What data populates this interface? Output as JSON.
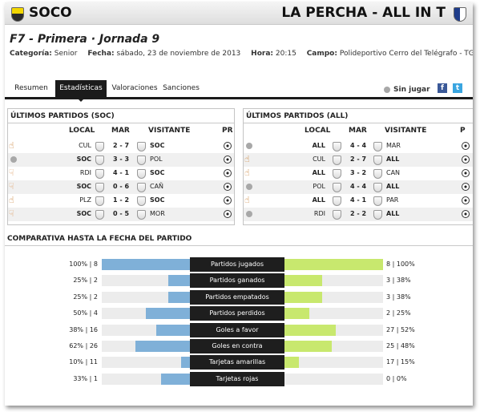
{
  "header": {
    "home_team": "SOCO",
    "away_team": "LA PERCHA - ALL IN T",
    "title": "F7 - Primera · Jornada 9",
    "categoria_label": "Categoría:",
    "categoria": "Senior",
    "fecha_label": "Fecha:",
    "fecha": "sábado, 23 de noviembre de 2013",
    "hora_label": "Hora:",
    "hora": "20:15",
    "campo_label": "Campo:",
    "campo": "Polideportivo Cerro del Telégrafo - TGC"
  },
  "tabs": [
    {
      "label": "Resumen"
    },
    {
      "label": "Estadísticas"
    },
    {
      "label": "Valoraciones"
    },
    {
      "label": "Sanciones"
    }
  ],
  "sin_jugar": "Sin jugar",
  "social": {
    "fb": "f",
    "tw": "t"
  },
  "colors": {
    "accent_dark": "#1b1b1b",
    "home_bar": "#7fb0d8",
    "away_bar": "#c8e86e"
  },
  "panels": [
    {
      "title": "ÚLTIMOS PARTIDOS (SOC)",
      "headers": {
        "local": "LOCAL",
        "mar": "MAR",
        "visitante": "VISITANTE",
        "pr": "PR"
      },
      "rows": [
        {
          "result": "win-icon",
          "local": "CUL",
          "local_bold": false,
          "score": "2 - 7",
          "visitante": "SOC",
          "vis_bold": true
        },
        {
          "result": "draw-icon",
          "local": "SOC",
          "local_bold": true,
          "score": "3 - 3",
          "visitante": "POL",
          "vis_bold": false
        },
        {
          "result": "loss-icon",
          "local": "RDI",
          "local_bold": false,
          "score": "4 - 1",
          "visitante": "SOC",
          "vis_bold": true
        },
        {
          "result": "loss-icon",
          "local": "SOC",
          "local_bold": true,
          "score": "0 - 6",
          "visitante": "CAÑ",
          "vis_bold": false
        },
        {
          "result": "win-icon",
          "local": "PLZ",
          "local_bold": false,
          "score": "1 - 2",
          "visitante": "SOC",
          "vis_bold": true
        },
        {
          "result": "loss-icon",
          "local": "SOC",
          "local_bold": true,
          "score": "0 - 5",
          "visitante": "MOR",
          "vis_bold": false
        }
      ]
    },
    {
      "title": "ÚLTIMOS PARTIDOS (ALL)",
      "headers": {
        "local": "LOCAL",
        "mar": "MAR",
        "visitante": "VISITANTE",
        "pr": "P"
      },
      "rows": [
        {
          "result": "draw-icon",
          "local": "ALL",
          "local_bold": true,
          "score": "4 - 4",
          "visitante": "MAR",
          "vis_bold": false
        },
        {
          "result": "win-icon",
          "local": "CUL",
          "local_bold": false,
          "score": "2 - 7",
          "visitante": "ALL",
          "vis_bold": true
        },
        {
          "result": "win-icon",
          "local": "ALL",
          "local_bold": true,
          "score": "3 - 2",
          "visitante": "CAN",
          "vis_bold": false
        },
        {
          "result": "draw-icon",
          "local": "POL",
          "local_bold": false,
          "score": "4 - 4",
          "visitante": "ALL",
          "vis_bold": true
        },
        {
          "result": "win-icon",
          "local": "ALL",
          "local_bold": true,
          "score": "4 - 1",
          "visitante": "PAR",
          "vis_bold": false
        },
        {
          "result": "draw-icon",
          "local": "RDI",
          "local_bold": false,
          "score": "2 - 2",
          "visitante": "ALL",
          "vis_bold": true
        }
      ]
    }
  ],
  "comparativa": {
    "title": "COMPARATIVA HASTA LA FECHA DEL PARTIDO",
    "stats": [
      {
        "label": "Partidos jugados",
        "left": "100% | 8",
        "right": "8 | 100%",
        "left_frac": 1.0,
        "right_frac": 1.0
      },
      {
        "label": "Partidos ganados",
        "left": "25% | 2",
        "right": "3 | 38%",
        "left_frac": 0.25,
        "right_frac": 0.38
      },
      {
        "label": "Partidos empatados",
        "left": "25% | 2",
        "right": "3 | 38%",
        "left_frac": 0.25,
        "right_frac": 0.38
      },
      {
        "label": "Partidos perdidos",
        "left": "50% | 4",
        "right": "2 | 25%",
        "left_frac": 0.5,
        "right_frac": 0.25
      },
      {
        "label": "Goles a favor",
        "left": "38% | 16",
        "right": "27 | 52%",
        "left_frac": 0.38,
        "right_frac": 0.52
      },
      {
        "label": "Goles en contra",
        "left": "62% | 26",
        "right": "25 | 48%",
        "left_frac": 0.62,
        "right_frac": 0.48
      },
      {
        "label": "Tarjetas amarillas",
        "left": "10% | 11",
        "right": "17 | 15%",
        "left_frac": 0.1,
        "right_frac": 0.15
      },
      {
        "label": "Tarjetas rojas",
        "left": "33% | 1",
        "right": "0 | 0%",
        "left_frac": 0.33,
        "right_frac": 0.0
      }
    ]
  }
}
